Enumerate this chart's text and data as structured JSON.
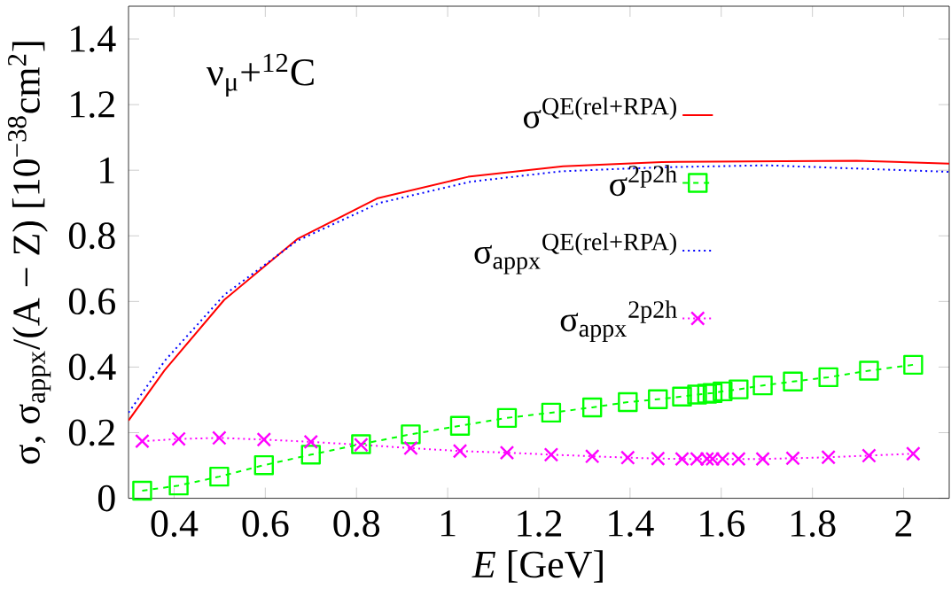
{
  "chart_data": {
    "type": "line",
    "xlabel": "*E* [GeV]",
    "ylabel": "σ, σ$_{appx}$/(A − Z) [10$^{−38}$cm$^{2}$]",
    "annotations": [
      "ν$_{μ}$+$^{12}$C"
    ],
    "xlim": [
      0.3,
      2.1
    ],
    "ylim": [
      0,
      1.5
    ],
    "xticks": [
      0.4,
      0.6,
      0.8,
      1,
      1.2,
      1.4,
      1.6,
      1.8,
      2
    ],
    "yticks": [
      0,
      0.2,
      0.4,
      0.6,
      0.8,
      1,
      1.2,
      1.4
    ],
    "grid": false,
    "legend": "top right",
    "series": [
      {
        "name": "σ$^{QE(rel+RPA)}$",
        "color": "#ff0000",
        "marker": "none",
        "line_style": "solid",
        "x": [
          0.3,
          0.379,
          0.51,
          0.67,
          0.847,
          1.045,
          1.253,
          1.47,
          1.897,
          2.1
        ],
        "values": [
          0.237,
          0.39,
          0.605,
          0.79,
          0.915,
          0.98,
          1.012,
          1.025,
          1.029,
          1.02
        ]
      },
      {
        "name": "σ$^{2p2h}$",
        "color": "#00ff00",
        "marker": "square",
        "line_style": "dashed",
        "x": [
          0.33,
          0.41,
          0.499,
          0.597,
          0.7,
          0.81,
          0.919,
          1.027,
          1.13,
          1.227,
          1.317,
          1.395,
          1.461,
          1.514,
          1.547,
          1.569,
          1.581,
          1.603,
          1.638,
          1.691,
          1.757,
          1.835,
          1.924,
          2.021
        ],
        "values": [
          0.023,
          0.039,
          0.066,
          0.101,
          0.133,
          0.165,
          0.195,
          0.221,
          0.245,
          0.261,
          0.277,
          0.293,
          0.302,
          0.31,
          0.316,
          0.319,
          0.321,
          0.326,
          0.332,
          0.344,
          0.356,
          0.369,
          0.389,
          0.407
        ]
      },
      {
        "name": "σ$_{appx}$$^{QE(rel+RPA)}$",
        "color": "#0000ff",
        "marker": "none",
        "line_style": "dotted",
        "x": [
          0.3,
          0.38,
          0.51,
          0.67,
          0.85,
          1.05,
          1.25,
          1.47,
          1.7,
          1.9,
          2.1
        ],
        "values": [
          0.261,
          0.42,
          0.62,
          0.785,
          0.9,
          0.965,
          0.997,
          1.009,
          1.015,
          1.005,
          0.995
        ]
      },
      {
        "name": "σ$_{appx}$$^{2p2h}$",
        "color": "#ff00ff",
        "marker": "cross",
        "line_style": "dotted",
        "x": [
          0.33,
          0.41,
          0.499,
          0.597,
          0.7,
          0.81,
          0.919,
          1.027,
          1.13,
          1.227,
          1.317,
          1.395,
          1.461,
          1.514,
          1.547,
          1.569,
          1.581,
          1.603,
          1.638,
          1.691,
          1.757,
          1.835,
          1.924,
          2.021
        ],
        "values": [
          0.174,
          0.181,
          0.184,
          0.179,
          0.172,
          0.163,
          0.153,
          0.144,
          0.139,
          0.133,
          0.128,
          0.124,
          0.121,
          0.12,
          0.12,
          0.12,
          0.12,
          0.12,
          0.12,
          0.12,
          0.122,
          0.125,
          0.13,
          0.136
        ]
      }
    ]
  }
}
